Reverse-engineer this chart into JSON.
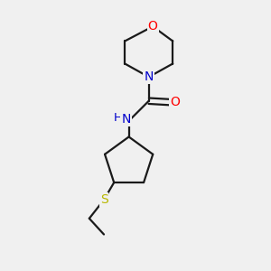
{
  "background_color": "#f0f0f0",
  "bond_color": "#1a1a1a",
  "atom_colors": {
    "O": "#ff0000",
    "N": "#0000cc",
    "S": "#b8b800",
    "H": "#1a1a1a",
    "C": "#1a1a1a"
  },
  "figsize": [
    3.0,
    3.0
  ],
  "dpi": 100,
  "lw": 1.6,
  "fontsize": 9.5
}
